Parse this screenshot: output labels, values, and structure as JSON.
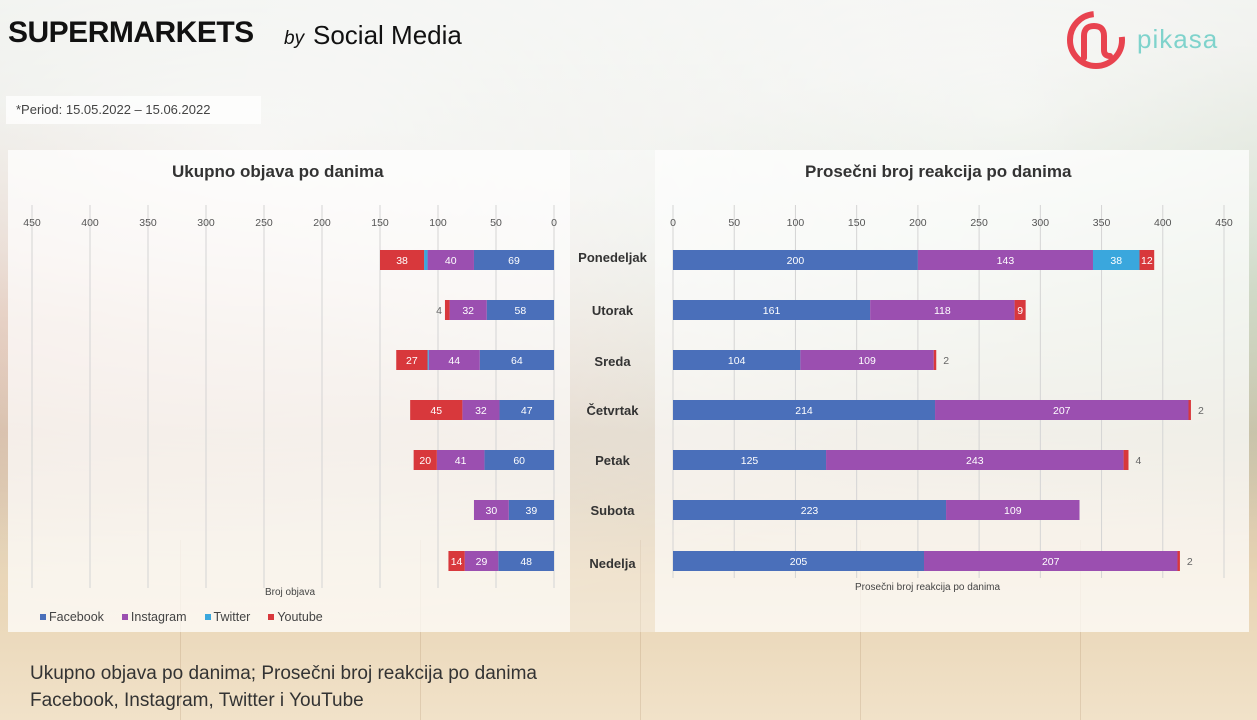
{
  "header": {
    "title": "SUPERMARKETS",
    "by": "by",
    "subtitle": "Social Media",
    "period": "*Period: 15.05.2022 – 15.06.2022",
    "brand": "pikasa"
  },
  "colors": {
    "Facebook": "#4a6fba",
    "Instagram": "#9b4fb0",
    "Twitter": "#3aa7dd",
    "Youtube": "#d8383c"
  },
  "days": [
    "Ponedeljak",
    "Utorak",
    "Sreda",
    "Četvrtak",
    "Petak",
    "Subota",
    "Nedelja"
  ],
  "legend": [
    "Facebook",
    "Instagram",
    "Twitter",
    "Youtube"
  ],
  "caption": {
    "line1": "Ukupno objava po danima; Prosečni broj reakcija po danima",
    "line2": "Facebook, Instagram, Twitter i YouTube"
  },
  "chart_data": [
    {
      "type": "bar",
      "orientation": "horizontal-stacked-reversed",
      "title": "Ukupno objava po danima",
      "xlabel": "Broj objava",
      "xlim": [
        0,
        450
      ],
      "ticks": [
        "450",
        "400",
        "350",
        "300",
        "250",
        "200",
        "150",
        "100",
        "50",
        "0"
      ],
      "categories": [
        "Ponedeljak",
        "Utorak",
        "Sreda",
        "Četvrtak",
        "Petak",
        "Subota",
        "Nedelja"
      ],
      "series": [
        {
          "name": "Facebook",
          "values": [
            69,
            58,
            64,
            47,
            60,
            39,
            48
          ]
        },
        {
          "name": "Instagram",
          "values": [
            40,
            32,
            44,
            32,
            41,
            30,
            29
          ]
        },
        {
          "name": "Twitter",
          "values": [
            3,
            0,
            1,
            0,
            0,
            0,
            0
          ]
        },
        {
          "name": "Youtube",
          "values": [
            38,
            4,
            27,
            45,
            20,
            0,
            14
          ]
        }
      ]
    },
    {
      "type": "bar",
      "orientation": "horizontal-stacked",
      "title": "Prosečni broj reakcija po danima",
      "xlabel": "Prosečni broj reakcija po danima",
      "xlim": [
        0,
        450
      ],
      "ticks": [
        "0",
        "50",
        "100",
        "150",
        "200",
        "250",
        "300",
        "350",
        "400",
        "450"
      ],
      "categories": [
        "Ponedeljak",
        "Utorak",
        "Sreda",
        "Četvrtak",
        "Petak",
        "Subota",
        "Nedelja"
      ],
      "series": [
        {
          "name": "Facebook",
          "values": [
            200,
            161,
            104,
            214,
            125,
            223,
            205
          ]
        },
        {
          "name": "Instagram",
          "values": [
            143,
            118,
            109,
            207,
            243,
            109,
            207
          ]
        },
        {
          "name": "Twitter",
          "values": [
            38,
            0,
            0,
            0,
            0,
            0,
            0
          ]
        },
        {
          "name": "Youtube",
          "values": [
            12,
            9,
            2,
            2,
            4,
            0,
            2
          ]
        }
      ]
    }
  ]
}
